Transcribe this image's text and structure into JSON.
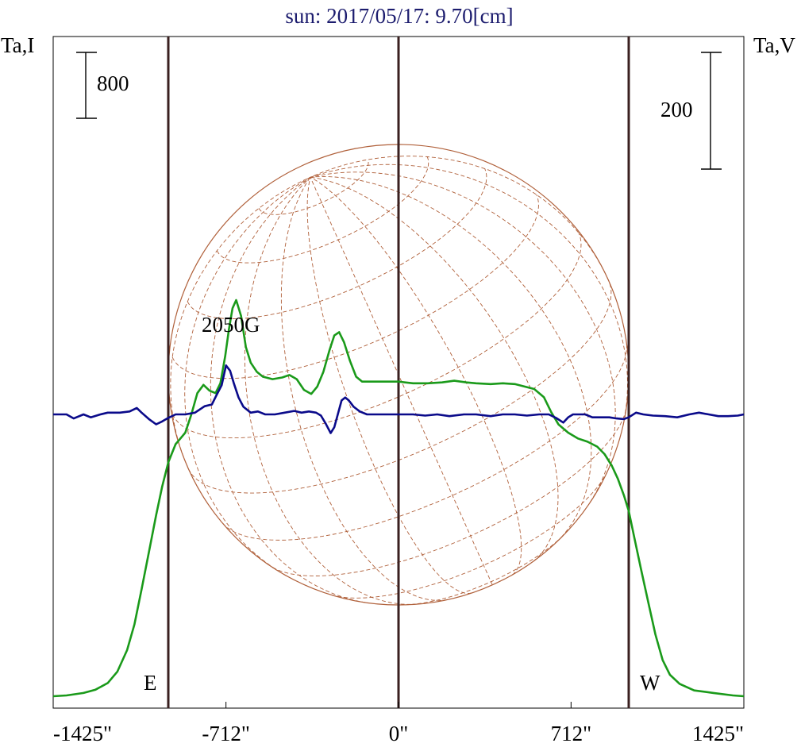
{
  "chart_data": {
    "type": "line",
    "title": "sun: 2017/05/17: 9.70[cm]",
    "left_axis_label": "Ta,I",
    "right_axis_label": "Ta,V",
    "x_ticks": [
      {
        "value": -1425,
        "label": "-1425\""
      },
      {
        "value": -712,
        "label": "-712\""
      },
      {
        "value": 0,
        "label": "0\""
      },
      {
        "value": 712,
        "label": "712\""
      },
      {
        "value": 1425,
        "label": "1425\""
      }
    ],
    "xlim": [
      -1425,
      1425
    ],
    "scale_bars": [
      {
        "axis": "I",
        "label": "800",
        "value": 800
      },
      {
        "axis": "V",
        "label": "200",
        "value": 200
      }
    ],
    "vertical_lines": [
      -950,
      0,
      950
    ],
    "limb_labels": {
      "east": "E",
      "west": "W"
    },
    "annotations": [
      {
        "text": "2050G",
        "x": -780
      }
    ],
    "solar_radius_arcsec": 950,
    "colors": {
      "title": "#1c1c6e",
      "stokes_i": "#1a9a1a",
      "stokes_v": "#0a0a8a",
      "disk": "#b0603a",
      "vertical_lines": "#3a2020",
      "axes": "#000000"
    },
    "series": [
      {
        "name": "I",
        "color": "#1a9a1a",
        "points": [
          [
            -1425,
            0
          ],
          [
            -1370,
            10
          ],
          [
            -1300,
            40
          ],
          [
            -1250,
            80
          ],
          [
            -1200,
            160
          ],
          [
            -1160,
            300
          ],
          [
            -1120,
            560
          ],
          [
            -1090,
            870
          ],
          [
            -1060,
            1300
          ],
          [
            -1030,
            1750
          ],
          [
            -1000,
            2200
          ],
          [
            -975,
            2550
          ],
          [
            -950,
            2840
          ],
          [
            -920,
            3060
          ],
          [
            -900,
            3130
          ],
          [
            -880,
            3200
          ],
          [
            -855,
            3420
          ],
          [
            -830,
            3680
          ],
          [
            -805,
            3780
          ],
          [
            -780,
            3710
          ],
          [
            -755,
            3680
          ],
          [
            -735,
            3800
          ],
          [
            -715,
            4130
          ],
          [
            -700,
            4450
          ],
          [
            -685,
            4710
          ],
          [
            -670,
            4810
          ],
          [
            -650,
            4620
          ],
          [
            -630,
            4240
          ],
          [
            -610,
            4050
          ],
          [
            -585,
            3940
          ],
          [
            -560,
            3880
          ],
          [
            -520,
            3850
          ],
          [
            -480,
            3870
          ],
          [
            -450,
            3900
          ],
          [
            -420,
            3850
          ],
          [
            -390,
            3720
          ],
          [
            -360,
            3670
          ],
          [
            -335,
            3760
          ],
          [
            -310,
            3940
          ],
          [
            -285,
            4200
          ],
          [
            -265,
            4380
          ],
          [
            -245,
            4420
          ],
          [
            -225,
            4300
          ],
          [
            -200,
            4070
          ],
          [
            -175,
            3880
          ],
          [
            -150,
            3820
          ],
          [
            -100,
            3820
          ],
          [
            -50,
            3820
          ],
          [
            0,
            3820
          ],
          [
            60,
            3800
          ],
          [
            120,
            3800
          ],
          [
            180,
            3810
          ],
          [
            230,
            3830
          ],
          [
            280,
            3810
          ],
          [
            320,
            3800
          ],
          [
            380,
            3790
          ],
          [
            430,
            3800
          ],
          [
            480,
            3790
          ],
          [
            520,
            3760
          ],
          [
            560,
            3730
          ],
          [
            600,
            3630
          ],
          [
            630,
            3450
          ],
          [
            660,
            3300
          ],
          [
            700,
            3200
          ],
          [
            740,
            3130
          ],
          [
            780,
            3090
          ],
          [
            820,
            3030
          ],
          [
            850,
            2940
          ],
          [
            880,
            2800
          ],
          [
            905,
            2640
          ],
          [
            930,
            2440
          ],
          [
            950,
            2250
          ],
          [
            975,
            1900
          ],
          [
            1000,
            1550
          ],
          [
            1030,
            1150
          ],
          [
            1060,
            750
          ],
          [
            1090,
            440
          ],
          [
            1120,
            260
          ],
          [
            1160,
            150
          ],
          [
            1220,
            70
          ],
          [
            1300,
            40
          ],
          [
            1380,
            10
          ],
          [
            1425,
            0
          ]
        ]
      },
      {
        "name": "V",
        "color": "#0a0a8a",
        "points": [
          [
            -1425,
            0
          ],
          [
            -1370,
            0
          ],
          [
            -1340,
            -7
          ],
          [
            -1300,
            0
          ],
          [
            -1270,
            -5
          ],
          [
            -1230,
            0
          ],
          [
            -1200,
            3
          ],
          [
            -1150,
            3
          ],
          [
            -1110,
            5
          ],
          [
            -1080,
            11
          ],
          [
            -1060,
            3
          ],
          [
            -1030,
            -8
          ],
          [
            -1000,
            -17
          ],
          [
            -975,
            -12
          ],
          [
            -950,
            -6
          ],
          [
            -920,
            0
          ],
          [
            -880,
            0
          ],
          [
            -840,
            3
          ],
          [
            -800,
            14
          ],
          [
            -770,
            17
          ],
          [
            -750,
            34
          ],
          [
            -730,
            50
          ],
          [
            -712,
            84
          ],
          [
            -695,
            75
          ],
          [
            -680,
            54
          ],
          [
            -660,
            29
          ],
          [
            -640,
            13
          ],
          [
            -610,
            3
          ],
          [
            -580,
            5
          ],
          [
            -550,
            0
          ],
          [
            -510,
            0
          ],
          [
            -470,
            3
          ],
          [
            -430,
            6
          ],
          [
            -400,
            3
          ],
          [
            -370,
            5
          ],
          [
            -340,
            3
          ],
          [
            -320,
            -2
          ],
          [
            -300,
            -16
          ],
          [
            -280,
            -32
          ],
          [
            -265,
            -22
          ],
          [
            -250,
            1
          ],
          [
            -235,
            24
          ],
          [
            -220,
            29
          ],
          [
            -205,
            24
          ],
          [
            -185,
            13
          ],
          [
            -160,
            5
          ],
          [
            -130,
            0
          ],
          [
            -80,
            0
          ],
          [
            -30,
            0
          ],
          [
            0,
            0
          ],
          [
            60,
            0
          ],
          [
            110,
            -2
          ],
          [
            160,
            0
          ],
          [
            210,
            -3
          ],
          [
            270,
            0
          ],
          [
            320,
            0
          ],
          [
            380,
            -3
          ],
          [
            430,
            0
          ],
          [
            480,
            0
          ],
          [
            530,
            -2
          ],
          [
            580,
            0
          ],
          [
            620,
            0
          ],
          [
            650,
            -6
          ],
          [
            680,
            -14
          ],
          [
            700,
            -5
          ],
          [
            720,
            0
          ],
          [
            770,
            0
          ],
          [
            800,
            -5
          ],
          [
            830,
            -5
          ],
          [
            870,
            -5
          ],
          [
            900,
            -7
          ],
          [
            930,
            -8
          ],
          [
            950,
            -5
          ],
          [
            980,
            3
          ],
          [
            1010,
            0
          ],
          [
            1050,
            -2
          ],
          [
            1100,
            -3
          ],
          [
            1150,
            -5
          ],
          [
            1200,
            0
          ],
          [
            1240,
            3
          ],
          [
            1280,
            0
          ],
          [
            1320,
            -3
          ],
          [
            1360,
            -3
          ],
          [
            1400,
            -2
          ],
          [
            1425,
            0
          ]
        ]
      }
    ]
  }
}
